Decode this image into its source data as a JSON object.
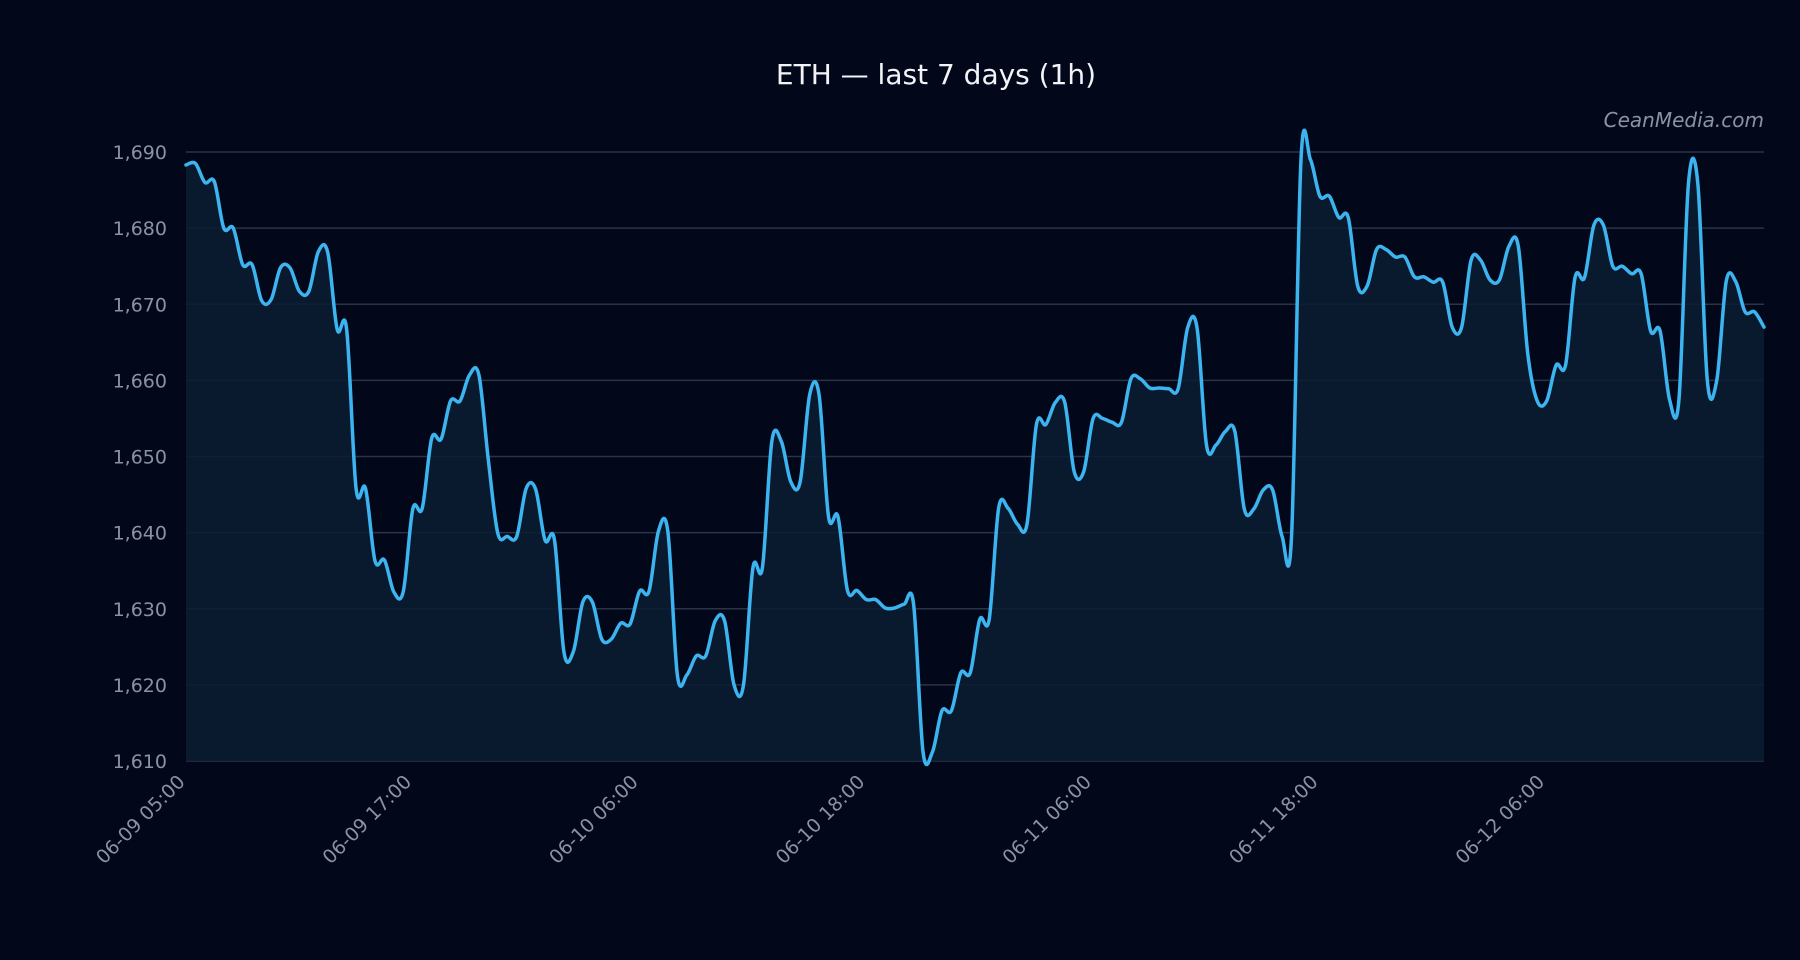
{
  "chart_data": {
    "type": "area",
    "title": "ETH — last 7 days (1h)",
    "watermark": "CeanMedia.com",
    "xlabel": "",
    "ylabel": "",
    "ylim": [
      1610,
      1690
    ],
    "y_ticks": [
      1610,
      1620,
      1630,
      1640,
      1650,
      1660,
      1670,
      1680,
      1690
    ],
    "y_tick_labels": [
      "1,610",
      "1,620",
      "1,630",
      "1,640",
      "1,650",
      "1,660",
      "1,670",
      "1,680",
      "1,690"
    ],
    "x_ticks": [
      "06-09 05:00",
      "06-09 17:00",
      "06-10 06:00",
      "06-10 18:00",
      "06-11 06:00",
      "06-11 18:00",
      "06-12 06:00"
    ],
    "grid": true,
    "legend": "none",
    "series": [
      {
        "values": [
          1688.3,
          1688.5,
          1686.0,
          1686.1,
          1680.0,
          1680.0,
          1675.2,
          1675.2,
          1670.5,
          1670.6,
          1674.8,
          1674.8,
          1671.7,
          1671.7,
          1676.9,
          1676.8,
          1666.7,
          1666.7,
          1645.8,
          1645.8,
          1636.3,
          1636.4,
          1632.2,
          1632.3,
          1643.1,
          1643.2,
          1652.4,
          1652.3,
          1657.3,
          1657.3,
          1660.7,
          1660.7,
          1649.5,
          1639.9,
          1639.5,
          1639.5,
          1645.8,
          1645.7,
          1639.0,
          1639.0,
          1624.3,
          1624.4,
          1630.9,
          1630.9,
          1626.0,
          1626.0,
          1628.1,
          1628.0,
          1632.3,
          1632.3,
          1640.2,
          1640.1,
          1621.3,
          1621.3,
          1623.8,
          1623.8,
          1628.4,
          1628.4,
          1620.0,
          1620.0,
          1635.4,
          1635.4,
          1652.0,
          1652.0,
          1646.7,
          1646.7,
          1658.1,
          1658.1,
          1642.1,
          1642.1,
          1632.4,
          1632.4,
          1631.2,
          1631.2,
          1630.1,
          1630.1,
          1630.6,
          1630.6,
          1611.2,
          1611.2,
          1616.6,
          1616.6,
          1621.6,
          1621.6,
          1628.6,
          1628.6,
          1643.2,
          1643.2,
          1641.1,
          1641.1,
          1654.2,
          1654.2,
          1657.1,
          1657.1,
          1648.0,
          1648.0,
          1655.0,
          1655.0,
          1654.5,
          1654.5,
          1660.2,
          1660.2,
          1659.0,
          1659.0,
          1658.9,
          1658.9,
          1666.9,
          1666.9,
          1651.5,
          1651.5,
          1653.3,
          1653.3,
          1643.1,
          1643.1,
          1645.6,
          1645.6,
          1639.5,
          1639.5,
          1689.0,
          1689.0,
          1684.2,
          1684.2,
          1681.4,
          1681.4,
          1672.4,
          1672.4,
          1677.2,
          1677.2,
          1676.2,
          1676.2,
          1673.6,
          1673.6,
          1672.9,
          1672.9,
          1667.0,
          1667.0,
          1675.8,
          1675.8,
          1673.2,
          1673.2,
          1677.6,
          1677.6,
          1663.5,
          1657.3,
          1657.3,
          1662.0,
          1662.0,
          1673.5,
          1673.5,
          1680.4,
          1680.4,
          1675.0,
          1675.0,
          1674.0,
          1674.0,
          1666.5,
          1666.5,
          1657.5,
          1657.5,
          1685.8,
          1685.8,
          1660.0,
          1660.0,
          1673.0,
          1673.0,
          1669.0,
          1669.0,
          1667.0
        ]
      }
    ],
    "colors": {
      "background": "#02071a",
      "plot_background": "#030a1e",
      "line": "#3cb4f0",
      "area_fill": "#0b1c33",
      "grid": "#2a3448",
      "tick_text": "#8a93a4",
      "title_text": "#f2f4f8",
      "watermark_text": "#8a93a4"
    }
  }
}
